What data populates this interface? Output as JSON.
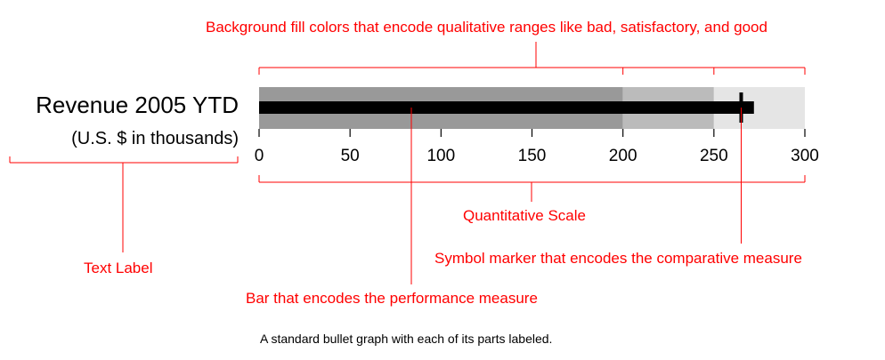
{
  "label": {
    "title": "Revenue 2005 YTD",
    "subtitle": "(U.S. $ in thousands)"
  },
  "annotations": {
    "background": "Background fill colors that encode qualitative ranges like bad, satisfactory, and good",
    "scale": "Quantitative Scale",
    "marker": "Symbol marker that encodes the comparative measure",
    "text_label": "Text Label",
    "bar": "Bar that encodes the performance measure"
  },
  "caption": "A standard bullet graph with each of its parts labeled.",
  "colors": {
    "annotation": "#ff0000",
    "range_bad": "#999999",
    "range_satisfactory": "#bbbbbb",
    "range_good": "#e5e5e5",
    "bar": "#000000",
    "marker": "#000000"
  },
  "chart_data": {
    "type": "bullet",
    "scale": {
      "min": 0,
      "max": 300,
      "ticks": [
        0,
        50,
        100,
        150,
        200,
        250,
        300
      ]
    },
    "ranges": [
      {
        "to": 200,
        "color": "#999999"
      },
      {
        "to": 250,
        "color": "#bbbbbb"
      },
      {
        "to": 300,
        "color": "#e5e5e5"
      }
    ],
    "measure": 272,
    "comparative": 265
  }
}
